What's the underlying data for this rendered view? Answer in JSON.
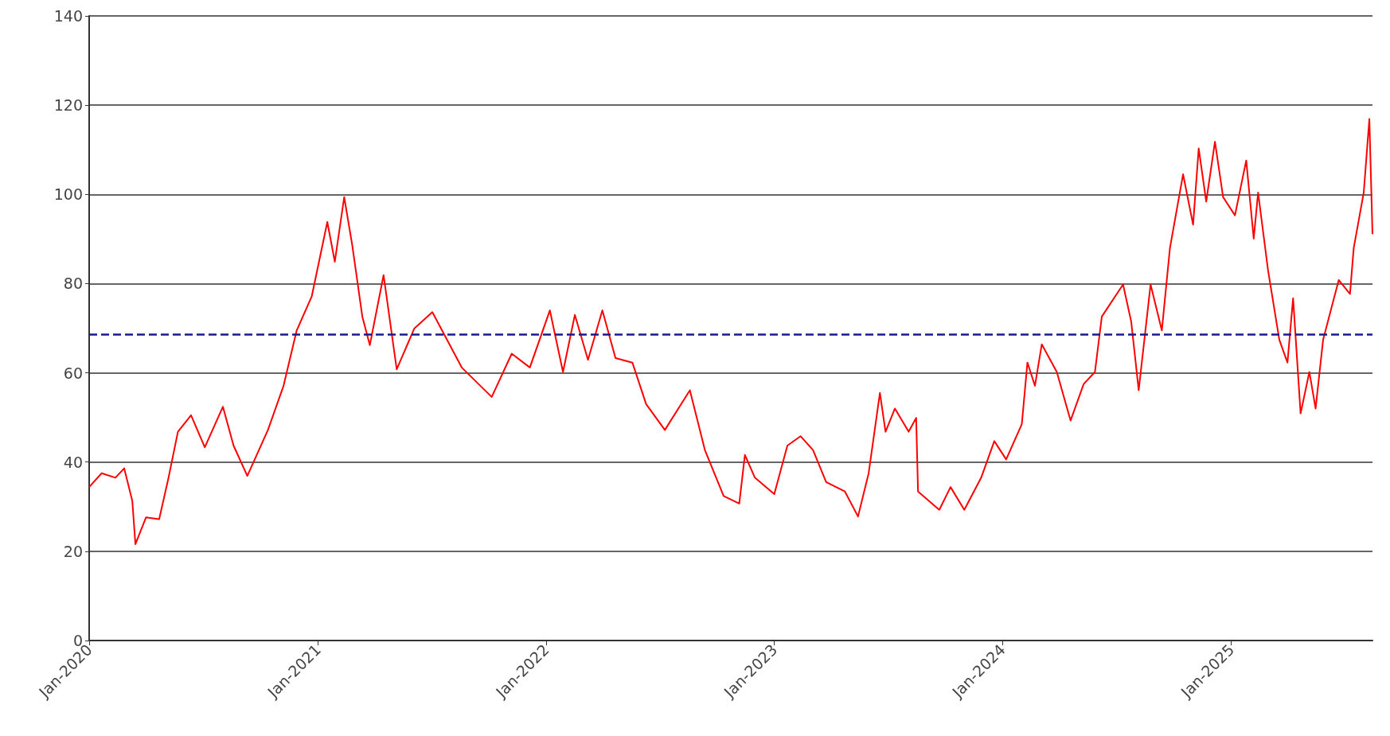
{
  "chart_data": {
    "type": "line",
    "x": [
      "2020-01-01",
      "2020-01-21",
      "2020-02-12",
      "2020-02-26",
      "2020-03-10",
      "2020-03-15",
      "2020-04-01",
      "2020-04-22",
      "2020-05-07",
      "2020-05-22",
      "2020-06-12",
      "2020-07-04",
      "2020-08-02",
      "2020-08-19",
      "2020-09-10",
      "2020-10-13",
      "2020-11-07",
      "2020-11-28",
      "2020-12-22",
      "2021-01-16",
      "2021-01-28",
      "2021-02-12",
      "2021-02-25",
      "2021-03-13",
      "2021-03-25",
      "2021-04-16",
      "2021-05-07",
      "2021-06-04",
      "2021-07-03",
      "2021-08-19",
      "2021-10-06",
      "2021-11-07",
      "2021-12-06",
      "2022-01-07",
      "2022-01-28",
      "2022-02-16",
      "2022-03-09",
      "2022-04-01",
      "2022-04-22",
      "2022-05-19",
      "2022-06-10",
      "2022-07-10",
      "2022-08-19",
      "2022-09-12",
      "2022-10-12",
      "2022-11-06",
      "2022-11-15",
      "2022-12-01",
      "2023-01-01",
      "2023-01-22",
      "2023-02-12",
      "2023-03-04",
      "2023-03-25",
      "2023-04-24",
      "2023-05-15",
      "2023-06-01",
      "2023-06-19",
      "2023-06-28",
      "2023-07-13",
      "2023-08-04",
      "2023-08-16",
      "2023-08-19",
      "2023-09-22",
      "2023-10-10",
      "2023-11-01",
      "2023-11-28",
      "2023-12-19",
      "2024-01-07",
      "2024-02-01",
      "2024-02-10",
      "2024-02-22",
      "2024-03-04",
      "2024-03-28",
      "2024-04-19",
      "2024-05-10",
      "2024-05-28",
      "2024-06-08",
      "2024-07-12",
      "2024-07-25",
      "2024-08-06",
      "2024-08-25",
      "2024-09-12",
      "2024-09-25",
      "2024-10-16",
      "2024-11-01",
      "2024-11-10",
      "2024-11-22",
      "2024-12-06",
      "2024-12-19",
      "2025-01-07",
      "2025-01-25",
      "2025-02-06",
      "2025-02-13",
      "2025-03-01",
      "2025-03-19",
      "2025-04-01",
      "2025-04-10",
      "2025-04-22",
      "2025-05-06",
      "2025-05-16",
      "2025-05-28",
      "2025-06-22",
      "2025-07-10",
      "2025-07-16",
      "2025-08-01",
      "2025-08-10",
      "2025-08-15"
    ],
    "series": [
      {
        "color": "#ff0000",
        "values": [
          34.4,
          37.5,
          36.5,
          38.6,
          31.3,
          21.6,
          27.6,
          27.2,
          36.5,
          46.8,
          50.5,
          43.3,
          52.4,
          43.7,
          36.9,
          47.2,
          57.1,
          69.5,
          77.1,
          93.8,
          84.9,
          99.4,
          88.5,
          72.6,
          66.2,
          81.9,
          60.8,
          69.9,
          73.6,
          61.2,
          54.6,
          64.3,
          61.2,
          74.0,
          60.2,
          73.0,
          62.9,
          74.0,
          63.3,
          62.3,
          53.0,
          47.2,
          56.1,
          42.7,
          32.4,
          30.7,
          41.6,
          36.5,
          32.8,
          43.7,
          45.8,
          42.7,
          35.5,
          33.4,
          27.8,
          37.5,
          55.5,
          46.8,
          52.0,
          46.8,
          49.9,
          33.4,
          29.3,
          34.4,
          29.3,
          36.5,
          44.7,
          40.6,
          48.5,
          62.3,
          57.1,
          66.4,
          60.2,
          49.3,
          57.5,
          60.2,
          72.6,
          79.8,
          71.5,
          56.1,
          79.8,
          69.5,
          88.0,
          104.5,
          93.2,
          110.3,
          98.4,
          111.8,
          99.4,
          95.3,
          107.6,
          90.1,
          100.4,
          82.9,
          67.4,
          62.3,
          76.7,
          50.9,
          60.2,
          52.0,
          67.4,
          80.8,
          77.7,
          88.0,
          100.4,
          116.9,
          91.1
        ]
      }
    ],
    "xlim": [
      "2020-01-01",
      "2025-08-15"
    ],
    "xticks": [
      {
        "value": "2020-01-01",
        "label": "Jan-2020"
      },
      {
        "value": "2021-01-01",
        "label": "Jan-2021"
      },
      {
        "value": "2022-01-01",
        "label": "Jan-2022"
      },
      {
        "value": "2023-01-01",
        "label": "Jan-2023"
      },
      {
        "value": "2024-01-01",
        "label": "Jan-2024"
      },
      {
        "value": "2025-01-01",
        "label": "Jan-2025"
      }
    ],
    "ylim": [
      0,
      140
    ],
    "yticks": [
      0,
      20,
      40,
      60,
      80,
      100,
      120,
      140
    ],
    "ref_lines": [
      {
        "axis": "y",
        "value": 68.7,
        "color": "#1a1a8c",
        "line_style": "dashed"
      }
    ],
    "grid": "y",
    "marker": "none",
    "line_style": "solid"
  }
}
